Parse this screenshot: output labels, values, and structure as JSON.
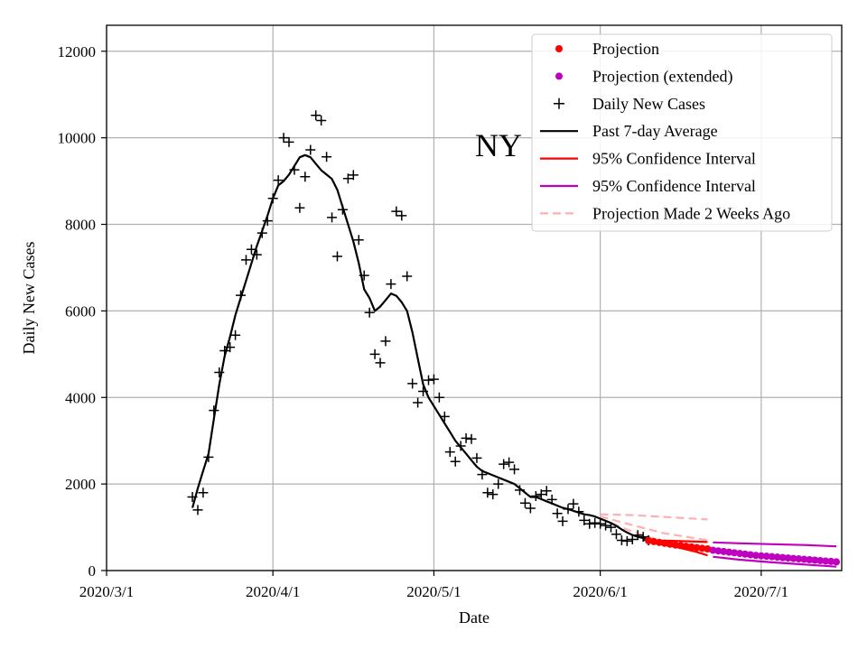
{
  "chart_data": {
    "type": "line",
    "region_label": "NY",
    "title": "",
    "xlabel": "Date",
    "ylabel": "Daily New Cases",
    "xlim": [
      0,
      137
    ],
    "ylim": [
      0,
      12600
    ],
    "x_ticks": [
      {
        "day": 0,
        "label": "2020/3/1"
      },
      {
        "day": 31,
        "label": "2020/4/1"
      },
      {
        "day": 61,
        "label": "2020/5/1"
      },
      {
        "day": 92,
        "label": "2020/6/1"
      },
      {
        "day": 122,
        "label": "2020/7/1"
      }
    ],
    "y_ticks": [
      0,
      2000,
      4000,
      6000,
      8000,
      10000,
      12000
    ],
    "y_tick_labels": [
      "0",
      "2000",
      "4000",
      "6000",
      "8000",
      "10000",
      "12000"
    ],
    "grid": true,
    "legend_position": "top-right",
    "legend": [
      {
        "key": "projection",
        "label": "Projection",
        "kind": "dot",
        "color": "#ff0000"
      },
      {
        "key": "projection_ext",
        "label": "Projection (extended)",
        "kind": "dot",
        "color": "#bf00bf"
      },
      {
        "key": "daily",
        "label": "Daily New Cases",
        "kind": "plus",
        "color": "#000000"
      },
      {
        "key": "avg7",
        "label": "Past 7-day Average",
        "kind": "line",
        "color": "#000000"
      },
      {
        "key": "ci",
        "label": "95% Confidence Interval",
        "kind": "line",
        "color": "#ff0000"
      },
      {
        "key": "ci_ext",
        "label": "95% Confidence Interval",
        "kind": "line",
        "color": "#bf00bf"
      },
      {
        "key": "proj_old",
        "label": "Projection Made 2 Weeks Ago",
        "kind": "dash",
        "color": "#ffb0b0"
      }
    ],
    "series": [
      {
        "name": "Daily New Cases",
        "style": "plus",
        "color": "#000000",
        "points": [
          [
            16,
            1700
          ],
          [
            17,
            1400
          ],
          [
            18,
            1800
          ],
          [
            19,
            2620
          ],
          [
            20,
            3700
          ],
          [
            21,
            4580
          ],
          [
            22,
            5080
          ],
          [
            23,
            5160
          ],
          [
            24,
            5440
          ],
          [
            25,
            6360
          ],
          [
            26,
            7180
          ],
          [
            27,
            7420
          ],
          [
            28,
            7300
          ],
          [
            29,
            7800
          ],
          [
            30,
            8080
          ],
          [
            31,
            8600
          ],
          [
            32,
            9020
          ],
          [
            33,
            10000
          ],
          [
            34,
            9900
          ],
          [
            35,
            9260
          ],
          [
            36,
            8380
          ],
          [
            37,
            9100
          ],
          [
            38,
            9720
          ],
          [
            39,
            10520
          ],
          [
            40,
            10400
          ],
          [
            41,
            9560
          ],
          [
            42,
            8160
          ],
          [
            43,
            7260
          ],
          [
            44,
            8340
          ],
          [
            45,
            9060
          ],
          [
            46,
            9140
          ],
          [
            47,
            7640
          ],
          [
            48,
            6820
          ],
          [
            49,
            5960
          ],
          [
            50,
            5000
          ],
          [
            51,
            4800
          ],
          [
            52,
            5300
          ],
          [
            53,
            6620
          ],
          [
            54,
            8300
          ],
          [
            55,
            8200
          ],
          [
            56,
            6800
          ],
          [
            57,
            4320
          ],
          [
            58,
            3880
          ],
          [
            59,
            4140
          ],
          [
            60,
            4400
          ],
          [
            61,
            4420
          ],
          [
            62,
            4000
          ],
          [
            63,
            3560
          ],
          [
            64,
            2740
          ],
          [
            65,
            2520
          ],
          [
            66,
            2880
          ],
          [
            67,
            3060
          ],
          [
            68,
            3040
          ],
          [
            69,
            2600
          ],
          [
            70,
            2220
          ],
          [
            71,
            1800
          ],
          [
            72,
            1760
          ],
          [
            73,
            2000
          ],
          [
            74,
            2460
          ],
          [
            75,
            2500
          ],
          [
            76,
            2340
          ],
          [
            77,
            1860
          ],
          [
            78,
            1560
          ],
          [
            79,
            1440
          ],
          [
            80,
            1720
          ],
          [
            81,
            1760
          ],
          [
            82,
            1840
          ],
          [
            83,
            1640
          ],
          [
            84,
            1320
          ],
          [
            85,
            1140
          ],
          [
            86,
            1420
          ],
          [
            87,
            1540
          ],
          [
            88,
            1360
          ],
          [
            89,
            1160
          ],
          [
            90,
            1080
          ],
          [
            91,
            1100
          ],
          [
            92,
            1080
          ],
          [
            93,
            1040
          ],
          [
            94,
            1000
          ],
          [
            95,
            840
          ],
          [
            96,
            700
          ],
          [
            97,
            680
          ],
          [
            98,
            720
          ],
          [
            99,
            820
          ],
          [
            100,
            780
          ],
          [
            101,
            700
          ]
        ]
      },
      {
        "name": "Past 7-day Average",
        "style": "line",
        "color": "#000000",
        "points": [
          [
            16,
            1450
          ],
          [
            17,
            1900
          ],
          [
            18,
            2300
          ],
          [
            19,
            2700
          ],
          [
            20,
            3500
          ],
          [
            21,
            4300
          ],
          [
            22,
            4950
          ],
          [
            23,
            5400
          ],
          [
            24,
            5900
          ],
          [
            25,
            6300
          ],
          [
            26,
            6700
          ],
          [
            27,
            7100
          ],
          [
            28,
            7500
          ],
          [
            29,
            7850
          ],
          [
            30,
            8200
          ],
          [
            31,
            8600
          ],
          [
            32,
            8900
          ],
          [
            33,
            9000
          ],
          [
            34,
            9150
          ],
          [
            35,
            9350
          ],
          [
            36,
            9550
          ],
          [
            37,
            9600
          ],
          [
            38,
            9550
          ],
          [
            39,
            9400
          ],
          [
            40,
            9250
          ],
          [
            41,
            9150
          ],
          [
            42,
            9050
          ],
          [
            43,
            8800
          ],
          [
            44,
            8400
          ],
          [
            45,
            8000
          ],
          [
            46,
            7600
          ],
          [
            47,
            7100
          ],
          [
            48,
            6500
          ],
          [
            49,
            6300
          ],
          [
            50,
            6000
          ],
          [
            51,
            6100
          ],
          [
            52,
            6250
          ],
          [
            53,
            6400
          ],
          [
            54,
            6350
          ],
          [
            55,
            6200
          ],
          [
            56,
            6000
          ],
          [
            57,
            5500
          ],
          [
            58,
            4900
          ],
          [
            59,
            4300
          ],
          [
            60,
            4000
          ],
          [
            61,
            3800
          ],
          [
            62,
            3600
          ],
          [
            63,
            3400
          ],
          [
            64,
            3200
          ],
          [
            65,
            3000
          ],
          [
            66,
            2850
          ],
          [
            67,
            2700
          ],
          [
            68,
            2550
          ],
          [
            69,
            2400
          ],
          [
            70,
            2300
          ],
          [
            71,
            2250
          ],
          [
            72,
            2200
          ],
          [
            73,
            2150
          ],
          [
            74,
            2100
          ],
          [
            75,
            2050
          ],
          [
            76,
            2000
          ],
          [
            77,
            1900
          ],
          [
            78,
            1800
          ],
          [
            79,
            1700
          ],
          [
            80,
            1700
          ],
          [
            81,
            1650
          ],
          [
            82,
            1600
          ],
          [
            83,
            1550
          ],
          [
            84,
            1500
          ],
          [
            85,
            1450
          ],
          [
            86,
            1420
          ],
          [
            87,
            1380
          ],
          [
            88,
            1340
          ],
          [
            89,
            1300
          ],
          [
            90,
            1280
          ],
          [
            91,
            1250
          ],
          [
            92,
            1200
          ],
          [
            93,
            1150
          ],
          [
            94,
            1100
          ],
          [
            95,
            1030
          ],
          [
            96,
            950
          ],
          [
            97,
            880
          ],
          [
            98,
            820
          ],
          [
            99,
            780
          ],
          [
            100,
            750
          ],
          [
            101,
            720
          ]
        ]
      },
      {
        "name": "Projection",
        "style": "dot",
        "color": "#ff0000",
        "points": [
          [
            101,
            690
          ],
          [
            102,
            670
          ],
          [
            103,
            650
          ],
          [
            104,
            630
          ],
          [
            105,
            610
          ],
          [
            106,
            590
          ],
          [
            107,
            575
          ],
          [
            108,
            560
          ],
          [
            109,
            545
          ],
          [
            110,
            530
          ],
          [
            111,
            515
          ],
          [
            112,
            500
          ]
        ]
      },
      {
        "name": "Projection (extended)",
        "style": "dot",
        "color": "#bf00bf",
        "points": [
          [
            113,
            470
          ],
          [
            114,
            455
          ],
          [
            115,
            440
          ],
          [
            116,
            425
          ],
          [
            117,
            410
          ],
          [
            118,
            395
          ],
          [
            119,
            380
          ],
          [
            120,
            365
          ],
          [
            121,
            350
          ],
          [
            122,
            340
          ],
          [
            123,
            330
          ],
          [
            124,
            320
          ],
          [
            125,
            310
          ],
          [
            126,
            300
          ],
          [
            127,
            290
          ],
          [
            128,
            280
          ],
          [
            129,
            270
          ],
          [
            130,
            260
          ],
          [
            131,
            250
          ],
          [
            132,
            240
          ],
          [
            133,
            230
          ],
          [
            134,
            220
          ],
          [
            135,
            210
          ],
          [
            136,
            200
          ]
        ]
      },
      {
        "name": "95% Confidence Interval (upper)",
        "style": "line",
        "color": "#ff0000",
        "points": [
          [
            101,
            700
          ],
          [
            104,
            690
          ],
          [
            107,
            680
          ],
          [
            110,
            670
          ],
          [
            112,
            660
          ]
        ]
      },
      {
        "name": "95% Confidence Interval (lower)",
        "style": "line",
        "color": "#ff0000",
        "points": [
          [
            101,
            680
          ],
          [
            104,
            600
          ],
          [
            107,
            520
          ],
          [
            110,
            430
          ],
          [
            112,
            350
          ]
        ]
      },
      {
        "name": "95% Confidence Interval extended (upper)",
        "style": "line",
        "color": "#bf00bf",
        "points": [
          [
            113,
            650
          ],
          [
            118,
            630
          ],
          [
            124,
            610
          ],
          [
            130,
            590
          ],
          [
            136,
            560
          ]
        ]
      },
      {
        "name": "95% Confidence Interval extended (lower)",
        "style": "line",
        "color": "#bf00bf",
        "points": [
          [
            113,
            320
          ],
          [
            118,
            250
          ],
          [
            124,
            190
          ],
          [
            130,
            140
          ],
          [
            136,
            90
          ]
        ]
      },
      {
        "name": "Projection Made 2 Weeks Ago (upper)",
        "style": "dash",
        "color": "#ffb0b0",
        "points": [
          [
            92,
            1300
          ],
          [
            98,
            1280
          ],
          [
            104,
            1240
          ],
          [
            112,
            1180
          ]
        ]
      },
      {
        "name": "Projection Made 2 Weeks Ago (mid)",
        "style": "dash",
        "color": "#ffb0b0",
        "points": [
          [
            92,
            1250
          ],
          [
            98,
            1050
          ],
          [
            104,
            860
          ],
          [
            112,
            700
          ]
        ]
      },
      {
        "name": "Projection Made 2 Weeks Ago (lower)",
        "style": "dash",
        "color": "#ffb0b0",
        "points": [
          [
            92,
            1200
          ],
          [
            98,
            900
          ],
          [
            104,
            650
          ],
          [
            112,
            460
          ]
        ]
      }
    ]
  }
}
